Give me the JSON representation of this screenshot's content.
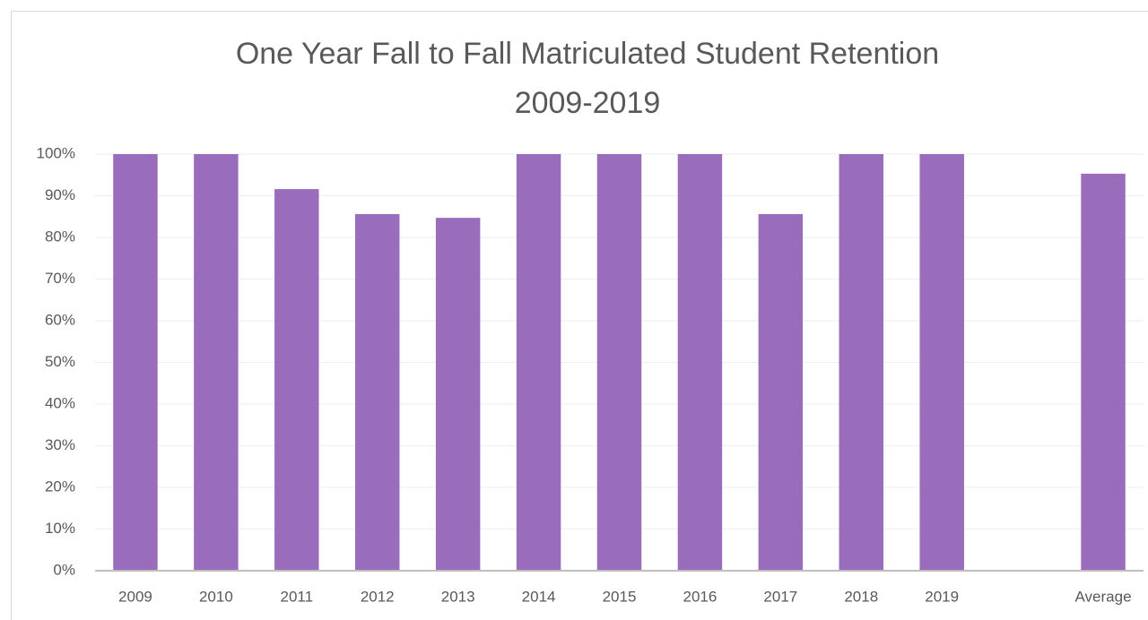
{
  "chart_data": {
    "type": "bar",
    "title": [
      "One Year Fall to Fall Matriculated Student Retention",
      "2009-2019"
    ],
    "categories": [
      "2009",
      "2010",
      "2011",
      "2012",
      "2013",
      "2014",
      "2015",
      "2016",
      "2017",
      "2018",
      "2019",
      null,
      "Average"
    ],
    "values": [
      100,
      100,
      91.6,
      85.6,
      84.7,
      100,
      100,
      100,
      85.6,
      100,
      100,
      null,
      95.3
    ],
    "color": "#9a6cbc",
    "ylim": [
      0,
      100
    ],
    "yticks": [
      {
        "value": 0,
        "label": "0%"
      },
      {
        "value": 10,
        "label": "10%"
      },
      {
        "value": 20,
        "label": "20%"
      },
      {
        "value": 30,
        "label": "30%"
      },
      {
        "value": 40,
        "label": "40%"
      },
      {
        "value": 50,
        "label": "50%"
      },
      {
        "value": 60,
        "label": "60%"
      },
      {
        "value": 70,
        "label": "70%"
      },
      {
        "value": 80,
        "label": "80%"
      },
      {
        "value": 90,
        "label": "90%"
      },
      {
        "value": 100,
        "label": "100%"
      }
    ],
    "grid": true
  }
}
